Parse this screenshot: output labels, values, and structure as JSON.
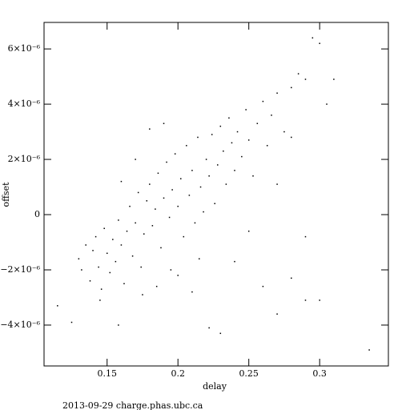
{
  "chart_data": {
    "type": "scatter",
    "xlabel": "delay",
    "ylabel": "offset",
    "footer": "2013-09-29 charge.phas.ubc.ca",
    "color": "#000000",
    "xlim": [
      0.1055,
      0.3485
    ],
    "ylim": [
      -5.48e-06,
      6.96e-06
    ],
    "xticks": [
      0.15,
      0.2,
      0.25,
      0.3
    ],
    "yticks": [
      {
        "value": -4e-06,
        "label": "−4×10⁻⁶"
      },
      {
        "value": -2e-06,
        "label": "−2×10⁻⁶"
      },
      0,
      {
        "value": 2e-06,
        "label": "2×10⁻⁶"
      },
      {
        "value": 4e-06,
        "label": "4×10⁻⁶"
      },
      {
        "value": 6e-06,
        "label": "6×10⁻⁶"
      }
    ],
    "x": [
      0.13,
      0.132,
      0.135,
      0.138,
      0.14,
      0.142,
      0.144,
      0.146,
      0.148,
      0.15,
      0.152,
      0.154,
      0.156,
      0.158,
      0.16,
      0.162,
      0.164,
      0.166,
      0.168,
      0.17,
      0.172,
      0.174,
      0.176,
      0.178,
      0.18,
      0.182,
      0.184,
      0.186,
      0.188,
      0.19,
      0.192,
      0.194,
      0.196,
      0.198,
      0.2,
      0.202,
      0.204,
      0.206,
      0.208,
      0.21,
      0.212,
      0.214,
      0.216,
      0.218,
      0.22,
      0.222,
      0.224,
      0.226,
      0.228,
      0.23,
      0.232,
      0.234,
      0.236,
      0.238,
      0.24,
      0.242,
      0.245,
      0.248,
      0.25,
      0.253,
      0.256,
      0.26,
      0.263,
      0.266,
      0.27,
      0.275,
      0.28,
      0.285,
      0.29,
      0.295,
      0.3,
      0.31,
      0.305,
      0.28,
      0.27,
      0.26,
      0.28,
      0.29,
      0.29,
      0.335,
      0.115,
      0.125,
      0.158,
      0.222,
      0.23,
      0.16,
      0.17,
      0.18,
      0.19,
      0.2,
      0.21,
      0.24,
      0.25,
      0.27,
      0.3,
      0.145,
      0.175,
      0.185,
      0.195,
      0.215
    ],
    "values": [
      -1.6e-06,
      -2e-06,
      -1.1e-06,
      -2.4e-06,
      -1.3e-06,
      -8e-07,
      -1.9e-06,
      -2.7e-06,
      -5e-07,
      -1.4e-06,
      -2.1e-06,
      -9e-07,
      -1.7e-06,
      -2e-07,
      -1.1e-06,
      -2.5e-06,
      -6e-07,
      3e-07,
      -1.5e-06,
      -3e-07,
      8e-07,
      -1.9e-06,
      -7e-07,
      5e-07,
      1.1e-06,
      -4e-07,
      2e-07,
      1.5e-06,
      -1.2e-06,
      6e-07,
      1.9e-06,
      -1e-07,
      9e-07,
      2.2e-06,
      3e-07,
      1.3e-06,
      -8e-07,
      2.5e-06,
      7e-07,
      1.6e-06,
      -3e-07,
      2.8e-06,
      1e-06,
      1e-07,
      2e-06,
      1.4e-06,
      2.9e-06,
      4e-07,
      1.8e-06,
      3.2e-06,
      2.3e-06,
      1.1e-06,
      3.5e-06,
      2.6e-06,
      1.6e-06,
      3e-06,
      2.1e-06,
      3.8e-06,
      2.7e-06,
      1.4e-06,
      3.3e-06,
      4.1e-06,
      2.5e-06,
      3.6e-06,
      4.4e-06,
      3e-06,
      4.6e-06,
      5.1e-06,
      4.9e-06,
      6.4e-06,
      6.2e-06,
      4.9e-06,
      4e-06,
      2.8e-06,
      1.1e-06,
      -2.6e-06,
      -2.3e-06,
      -3.1e-06,
      -8e-07,
      -4.9e-06,
      -3.3e-06,
      -3.9e-06,
      -4e-06,
      -4.1e-06,
      -4.3e-06,
      1.2e-06,
      2e-06,
      3.1e-06,
      3.3e-06,
      -2.2e-06,
      -2.8e-06,
      -1.7e-06,
      -6e-07,
      -3.6e-06,
      -3.1e-06,
      -3.1e-06,
      -2.9e-06,
      -2.6e-06,
      -2e-06,
      -1.6e-06
    ]
  }
}
